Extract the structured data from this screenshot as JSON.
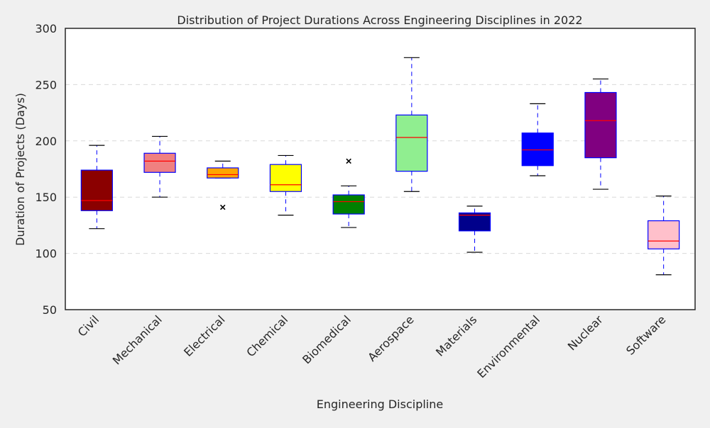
{
  "chart_data": {
    "type": "box",
    "title": "Distribution of Project Durations Across Engineering Disciplines in 2022",
    "xlabel": "Engineering Discipline",
    "ylabel": "Duration of Projects (Days)",
    "ylim": [
      50,
      300
    ],
    "yticks": [
      50,
      100,
      150,
      200,
      250,
      300
    ],
    "grid": "y-dashed",
    "categories": [
      "Civil",
      "Mechanical",
      "Electrical",
      "Chemical",
      "Biomedical",
      "Aerospace",
      "Materials",
      "Environmental",
      "Nuclear",
      "Software"
    ],
    "boxes": [
      {
        "min": 122,
        "q1": 138,
        "median": 147,
        "q3": 174,
        "max": 196,
        "outliers": [],
        "color": "#8b0000"
      },
      {
        "min": 150,
        "q1": 172,
        "median": 182,
        "q3": 189,
        "max": 204,
        "outliers": [],
        "color": "#f08080"
      },
      {
        "min": 167,
        "q1": 167,
        "median": 170,
        "q3": 176,
        "max": 182,
        "outliers": [
          141
        ],
        "color": "#ffa500"
      },
      {
        "min": 134,
        "q1": 155,
        "median": 161,
        "q3": 179,
        "max": 187,
        "outliers": [],
        "color": "#ffff00"
      },
      {
        "min": 123,
        "q1": 135,
        "median": 146,
        "q3": 152,
        "max": 160,
        "outliers": [
          182
        ],
        "color": "#008000"
      },
      {
        "min": 155,
        "q1": 173,
        "median": 203,
        "q3": 223,
        "max": 274,
        "outliers": [],
        "color": "#90ee90"
      },
      {
        "min": 101,
        "q1": 120,
        "median": 134,
        "q3": 136,
        "max": 142,
        "outliers": [],
        "color": "#00008b"
      },
      {
        "min": 169,
        "q1": 178,
        "median": 192,
        "q3": 207,
        "max": 233,
        "outliers": [],
        "color": "#0000ff"
      },
      {
        "min": 157,
        "q1": 185,
        "median": 218,
        "q3": 243,
        "max": 255,
        "outliers": [],
        "color": "#800080"
      },
      {
        "min": 81,
        "q1": 104,
        "median": 111,
        "q3": 129,
        "max": 151,
        "outliers": [],
        "color": "#ffc0cb"
      }
    ],
    "box_edge_color": "#0000ff",
    "whisker_color": "#0000ff",
    "median_color": "#ff0000",
    "outlier_marker": "x"
  }
}
